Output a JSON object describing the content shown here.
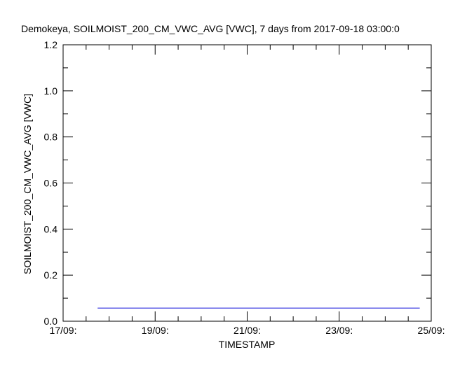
{
  "chart_data": {
    "type": "line",
    "title": "Demokeya, SOILMOIST_200_CM_VWC_AVG [VWC], 7 days from  2017-09-18 03:00:0",
    "xlabel": "TIMESTAMP",
    "ylabel": "SOILMOIST_200_CM_VWC_AVG [VWC]",
    "x_ticks": [
      "17/09:",
      "19/09:",
      "21/09:",
      "23/09:",
      "25/09:"
    ],
    "x_tick_days": [
      17,
      19,
      21,
      23,
      25
    ],
    "xlim": [
      17,
      25
    ],
    "x_minor_step": 0.5,
    "y_ticks": [
      "0.0",
      "0.2",
      "0.4",
      "0.6",
      "0.8",
      "1.0",
      "1.2"
    ],
    "ylim": [
      0,
      1.2
    ],
    "y_major_step": 0.2,
    "y_minor_step": 0.1,
    "grid": false,
    "series": [
      {
        "color": "#3a3ae0",
        "x": [
          17.75,
          24.75
        ],
        "y": [
          0.057,
          0.057
        ]
      }
    ]
  }
}
